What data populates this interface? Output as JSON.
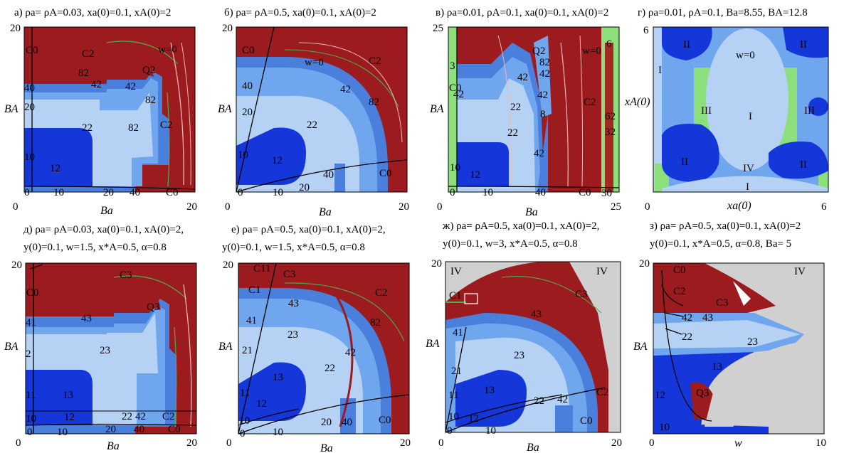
{
  "figure": {
    "panels": [
      {
        "id": "a",
        "title_lines": [
          "а) ρa= ρA=0.03, xa(0)=0.1, xA(0)=2"
        ],
        "xlabel": "Ba",
        "ylabel": "BA",
        "x_ticks": [
          "0",
          "20"
        ],
        "y_ticks": [
          "20"
        ],
        "regions": [
          "C0",
          "C2",
          "w=0",
          "Q2",
          "82",
          "42",
          "82",
          "42",
          "40",
          "20",
          "22",
          "82",
          "C2",
          "10",
          "12",
          "0",
          "10",
          "20",
          "40",
          "C0"
        ]
      },
      {
        "id": "b",
        "title_lines": [
          "б) ρa= ρA=0.5, xa(0)=0.1, xA(0)=2"
        ],
        "xlabel": "Ba",
        "ylabel": "BA",
        "x_ticks": [
          "0",
          "20"
        ],
        "y_ticks": [
          "20"
        ],
        "regions": [
          "C0",
          "w=0",
          "C2",
          "40",
          "42",
          "82",
          "20",
          "22",
          "10",
          "12",
          "40",
          "C0",
          "0",
          "10",
          "20"
        ]
      },
      {
        "id": "c",
        "title_lines": [
          "в) ρa=0.01, ρA=0.1, xa(0)=0.1, xA(0)=2"
        ],
        "xlabel": "Ba",
        "ylabel": "BA",
        "x_ticks": [
          "0",
          "25"
        ],
        "y_ticks": [
          "25"
        ],
        "regions": [
          "w=0",
          "Q2",
          "82",
          "42",
          "42",
          "22",
          "42",
          "C2",
          "42",
          "8",
          "C0",
          "3",
          "6",
          "62",
          "32",
          "22",
          "42",
          "10",
          "12",
          "0",
          "10",
          "40",
          "C0",
          "30"
        ]
      },
      {
        "id": "d",
        "title_lines": [
          "г) ρa=0.01, ρA=0.1, Ba=8.55, BA=12.8"
        ],
        "xlabel": "xa(0)",
        "ylabel": "xA(0)",
        "x_ticks": [
          "0",
          "6"
        ],
        "y_ticks": [
          "6"
        ],
        "regions": [
          "II",
          "w=0",
          "II",
          "I",
          "III",
          "I",
          "III",
          "II",
          "IV",
          "II",
          "I"
        ]
      },
      {
        "id": "e",
        "title_lines": [
          "д) ρa= ρA=0.03, xa(0)=0.1, xA(0)=2,",
          "y(0)=0.1, w=1.5, x*A=0.5, α=0.8"
        ],
        "xlabel": "Ba",
        "ylabel": "BA",
        "x_ticks": [
          "0",
          "20"
        ],
        "y_ticks": [
          "20"
        ],
        "regions": [
          "C3",
          "C0",
          "Q3",
          "43",
          "41",
          "2",
          "23",
          "11",
          "13",
          "10",
          "12",
          "22",
          "42",
          "C2",
          "0",
          "10",
          "20",
          "40",
          "C0"
        ]
      },
      {
        "id": "f",
        "title_lines": [
          "е) ρa= ρA=0.5, xa(0)=0.1, xA(0)=2,",
          "y(0)=0.1, w=1.5, x*A=0.5, α=0.8"
        ],
        "xlabel": "Ba",
        "ylabel": "BA",
        "x_ticks": [
          "0",
          "20"
        ],
        "y_ticks": [
          "20"
        ],
        "regions": [
          "C11",
          "C3",
          "C1",
          "C2",
          "43",
          "41",
          "82",
          "23",
          "21",
          "42",
          "22",
          "13",
          "11",
          "12",
          "10",
          "20",
          "40",
          "C0",
          "0",
          "10"
        ]
      },
      {
        "id": "g",
        "title_lines": [
          "ж) ρa= ρA=0.5, xa(0)=0.1, xA(0)=2,",
          "y(0)=0.1, w=3, x*A=0.5, α=0.8"
        ],
        "xlabel": "Ba",
        "ylabel": "BA",
        "x_ticks": [
          "0",
          "20"
        ],
        "y_ticks": [
          "20"
        ],
        "regions": [
          "IV",
          "IV",
          "C1",
          "C3",
          "43",
          "41",
          "23",
          "21",
          "13",
          "11",
          "10",
          "12",
          "22",
          "42",
          "C2",
          "0",
          "10",
          "C0"
        ]
      },
      {
        "id": "h",
        "title_lines": [
          "з) ρa= ρA=0.5, xa(0)=0.1, xA(0)=2",
          "y(0)=0.1, x*A=0.5, α=0.8, Ba= 5"
        ],
        "xlabel": "w",
        "ylabel": "BA",
        "x_ticks": [
          "0",
          "10"
        ],
        "y_ticks": [
          "20"
        ],
        "regions": [
          "IV",
          "C0",
          "C2",
          "C3",
          "42",
          "43",
          "22",
          "23",
          "13",
          "Q3",
          "12",
          "10"
        ]
      }
    ]
  }
}
